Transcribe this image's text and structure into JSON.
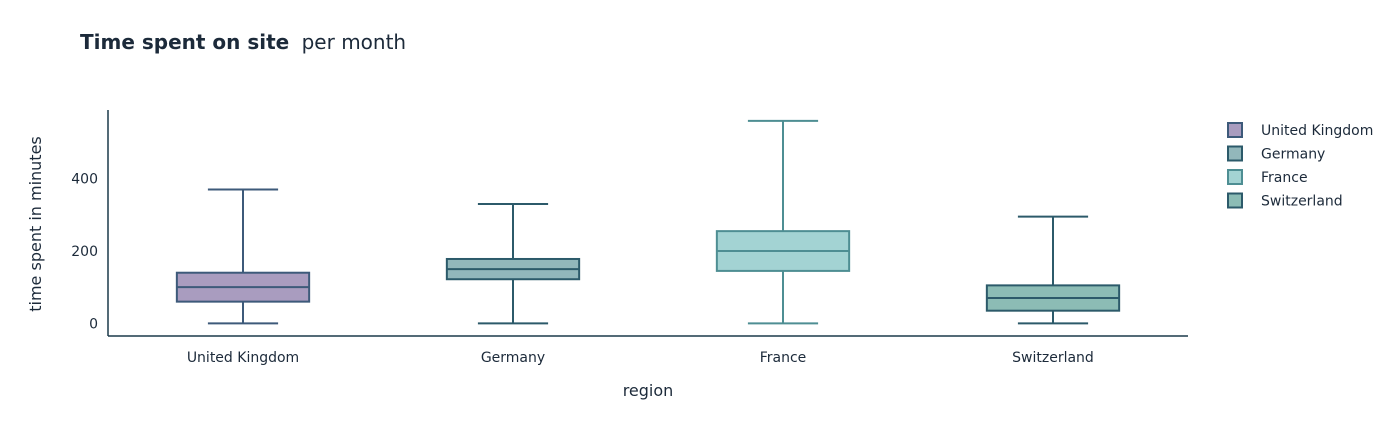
{
  "chart_data": {
    "type": "box",
    "title": "Time spent on site",
    "subtitle": "per month",
    "xlabel": "region",
    "ylabel": "time spent in minutes",
    "ylim": [
      -35,
      590
    ],
    "yticks": [
      0,
      200,
      400
    ],
    "grid": false,
    "legend_position": "top-right",
    "categories": [
      "United Kingdom",
      "Germany",
      "France",
      "Switzerland"
    ],
    "series": [
      {
        "name": "United Kingdom",
        "min": 0,
        "q1": 60,
        "median": 100,
        "q3": 140,
        "max": 370,
        "fill": "#a99cbf",
        "stroke": "#3d5a7a"
      },
      {
        "name": "Germany",
        "min": 0,
        "q1": 122,
        "median": 150,
        "q3": 178,
        "max": 330,
        "fill": "#92b7bb",
        "stroke": "#2c5a6a"
      },
      {
        "name": "France",
        "min": 0,
        "q1": 145,
        "median": 200,
        "q3": 255,
        "max": 560,
        "fill": "#a3d3d3",
        "stroke": "#4e8e93"
      },
      {
        "name": "Switzerland",
        "min": 0,
        "q1": 35,
        "median": 70,
        "q3": 105,
        "max": 295,
        "fill": "#8cbcb5",
        "stroke": "#2c5a6a"
      }
    ]
  }
}
